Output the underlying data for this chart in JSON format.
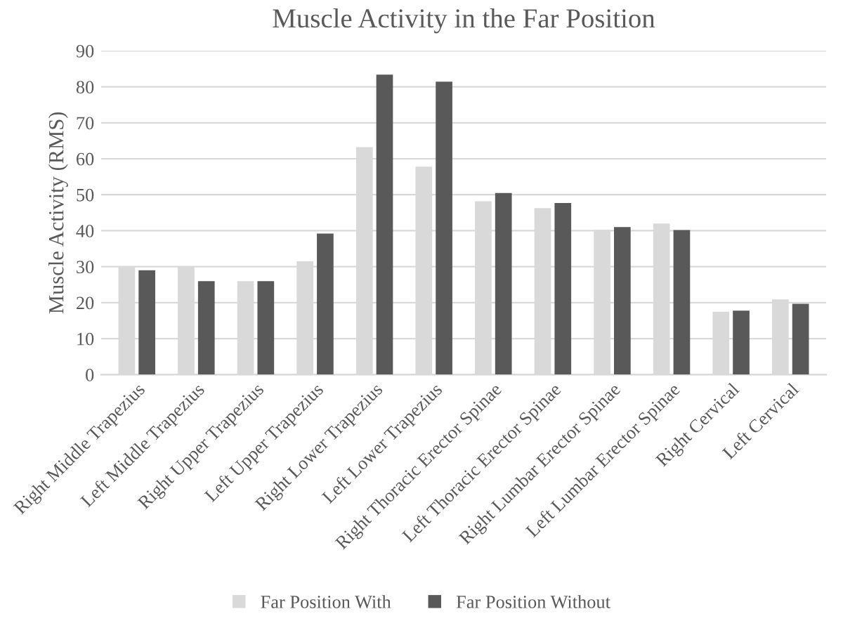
{
  "chart_data": {
    "type": "bar",
    "title": "Muscle Activity in the Far Position",
    "ylabel": "Muscle Activity (RMS)",
    "categories": [
      "Right Middle Trapezius",
      "Left Middle Trapezius",
      "Right Upper Trapezius",
      "Left Upper Trapezius",
      "Right Lower Trapezius",
      "Left Lower Trapezius",
      "Right Thoracic Erector Spinae",
      "Left Thoracic Erector Spinae",
      "Right Lumbar Erector Spinae",
      "Left Lumbar Erector Spinae",
      "Right Cervical",
      "Left Cervical"
    ],
    "series": [
      {
        "name": "Far Position With",
        "color": "#d9d9d9",
        "values": [
          30,
          30,
          26,
          31.5,
          63.2,
          57.8,
          48.2,
          46.3,
          40.3,
          42,
          17.5,
          20.9
        ]
      },
      {
        "name": "Far Position Without",
        "color": "#595959",
        "values": [
          29,
          26,
          26,
          39.2,
          83.4,
          81.4,
          50.5,
          47.7,
          41,
          40.2,
          17.8,
          19.7
        ]
      }
    ],
    "ylim": [
      0,
      90
    ],
    "yticks": [
      0,
      10,
      20,
      30,
      40,
      50,
      60,
      70,
      80,
      90
    ],
    "grid": "y",
    "legend": "bottom"
  }
}
